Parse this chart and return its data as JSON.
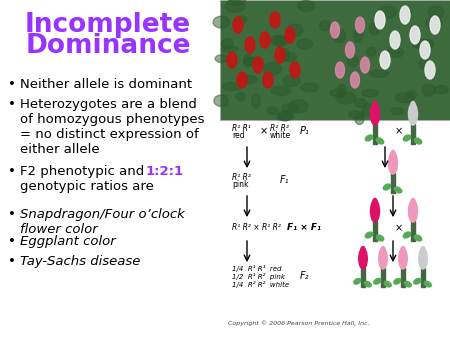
{
  "title_line1": "Incomplete",
  "title_line2": "Dominance",
  "title_color": "#9933FF",
  "background_color": "#FFFFFF",
  "ratio_text": "1:2:1",
  "ratio_color": "#9933FF",
  "bullet_color": "#000000",
  "bullet_font_size": 9.5,
  "title_font_size": 19,
  "copyright": "Copyright © 2006 Pearson Prentice Hall, Inc."
}
